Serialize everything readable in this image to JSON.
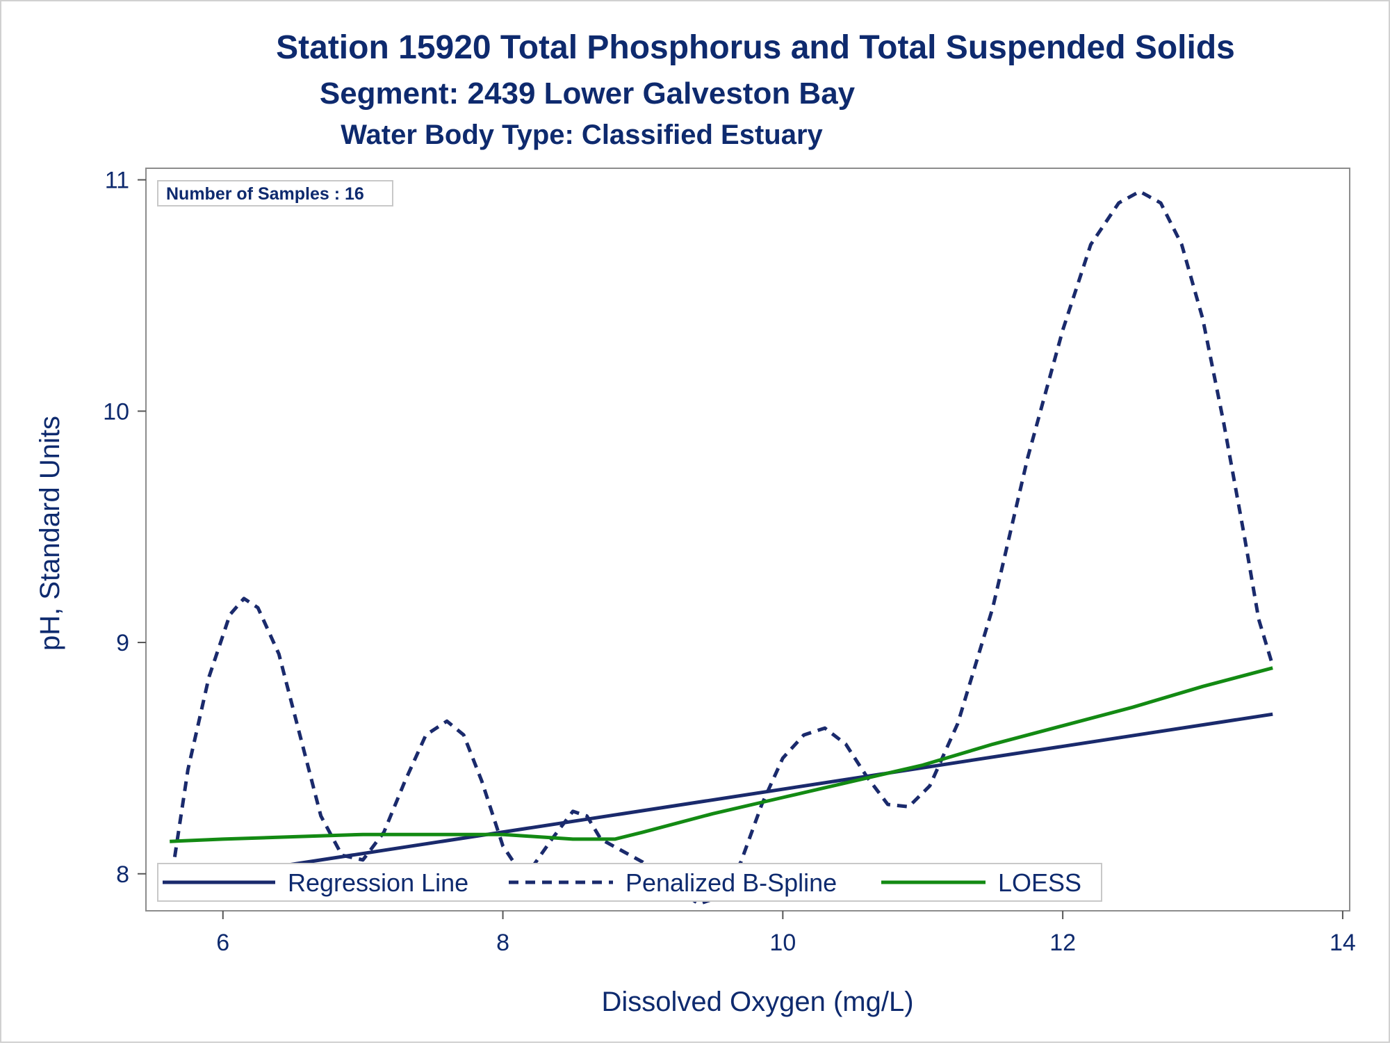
{
  "chart_data": {
    "type": "line",
    "title": "Station 15920  Total Phosphorus and Total Suspended Solids",
    "subtitle": "Segment: 2439  Lower Galveston Bay",
    "subtitle2": "Water Body Type: Classified Estuary",
    "xlabel": "Dissolved Oxygen (mg/L)",
    "ylabel": "pH, Standard Units",
    "xlim": [
      5.45,
      14.05
    ],
    "ylim": [
      7.84,
      11.05
    ],
    "xticks": [
      6,
      8,
      10,
      12,
      14
    ],
    "yticks": [
      8,
      9,
      10,
      11
    ],
    "inset_label": "Number of Samples : 16",
    "legend_position": "bottom-left inside",
    "series": [
      {
        "name": "Regression Line",
        "style": "solid",
        "color": "#1a2a6c",
        "x": [
          5.62,
          13.5
        ],
        "y": [
          7.96,
          8.69
        ]
      },
      {
        "name": "Penalized B-Spline",
        "style": "dashed",
        "color": "#1a2a6c",
        "x": [
          5.62,
          5.75,
          5.9,
          6.05,
          6.15,
          6.25,
          6.4,
          6.55,
          6.7,
          6.85,
          7.0,
          7.15,
          7.3,
          7.45,
          7.6,
          7.72,
          7.85,
          8.0,
          8.1,
          8.2,
          8.35,
          8.5,
          8.6,
          8.7,
          8.85,
          9.0,
          9.2,
          9.4,
          9.55,
          9.7,
          9.85,
          10.0,
          10.15,
          10.3,
          10.45,
          10.6,
          10.75,
          10.9,
          11.05,
          11.25,
          11.5,
          11.75,
          12.0,
          12.2,
          12.4,
          12.55,
          12.7,
          12.85,
          13.0,
          13.15,
          13.3,
          13.4,
          13.5
        ],
        "y": [
          7.93,
          8.45,
          8.85,
          9.12,
          9.19,
          9.15,
          8.95,
          8.6,
          8.25,
          8.08,
          8.06,
          8.18,
          8.4,
          8.6,
          8.66,
          8.6,
          8.4,
          8.12,
          8.03,
          8.02,
          8.15,
          8.27,
          8.25,
          8.15,
          8.1,
          8.05,
          7.95,
          7.87,
          7.9,
          8.05,
          8.3,
          8.5,
          8.6,
          8.63,
          8.56,
          8.42,
          8.3,
          8.29,
          8.38,
          8.65,
          9.15,
          9.8,
          10.35,
          10.72,
          10.9,
          10.95,
          10.9,
          10.72,
          10.4,
          9.95,
          9.45,
          9.1,
          8.9
        ]
      },
      {
        "name": "LOESS",
        "style": "solid",
        "color": "#138a13",
        "x": [
          5.62,
          6.0,
          6.5,
          7.0,
          7.5,
          8.0,
          8.5,
          8.8,
          9.0,
          9.5,
          10.0,
          10.5,
          11.0,
          11.5,
          12.0,
          12.5,
          13.0,
          13.5
        ],
        "y": [
          8.14,
          8.15,
          8.16,
          8.17,
          8.17,
          8.17,
          8.15,
          8.15,
          8.18,
          8.26,
          8.33,
          8.4,
          8.47,
          8.56,
          8.64,
          8.72,
          8.81,
          8.89
        ]
      }
    ]
  }
}
